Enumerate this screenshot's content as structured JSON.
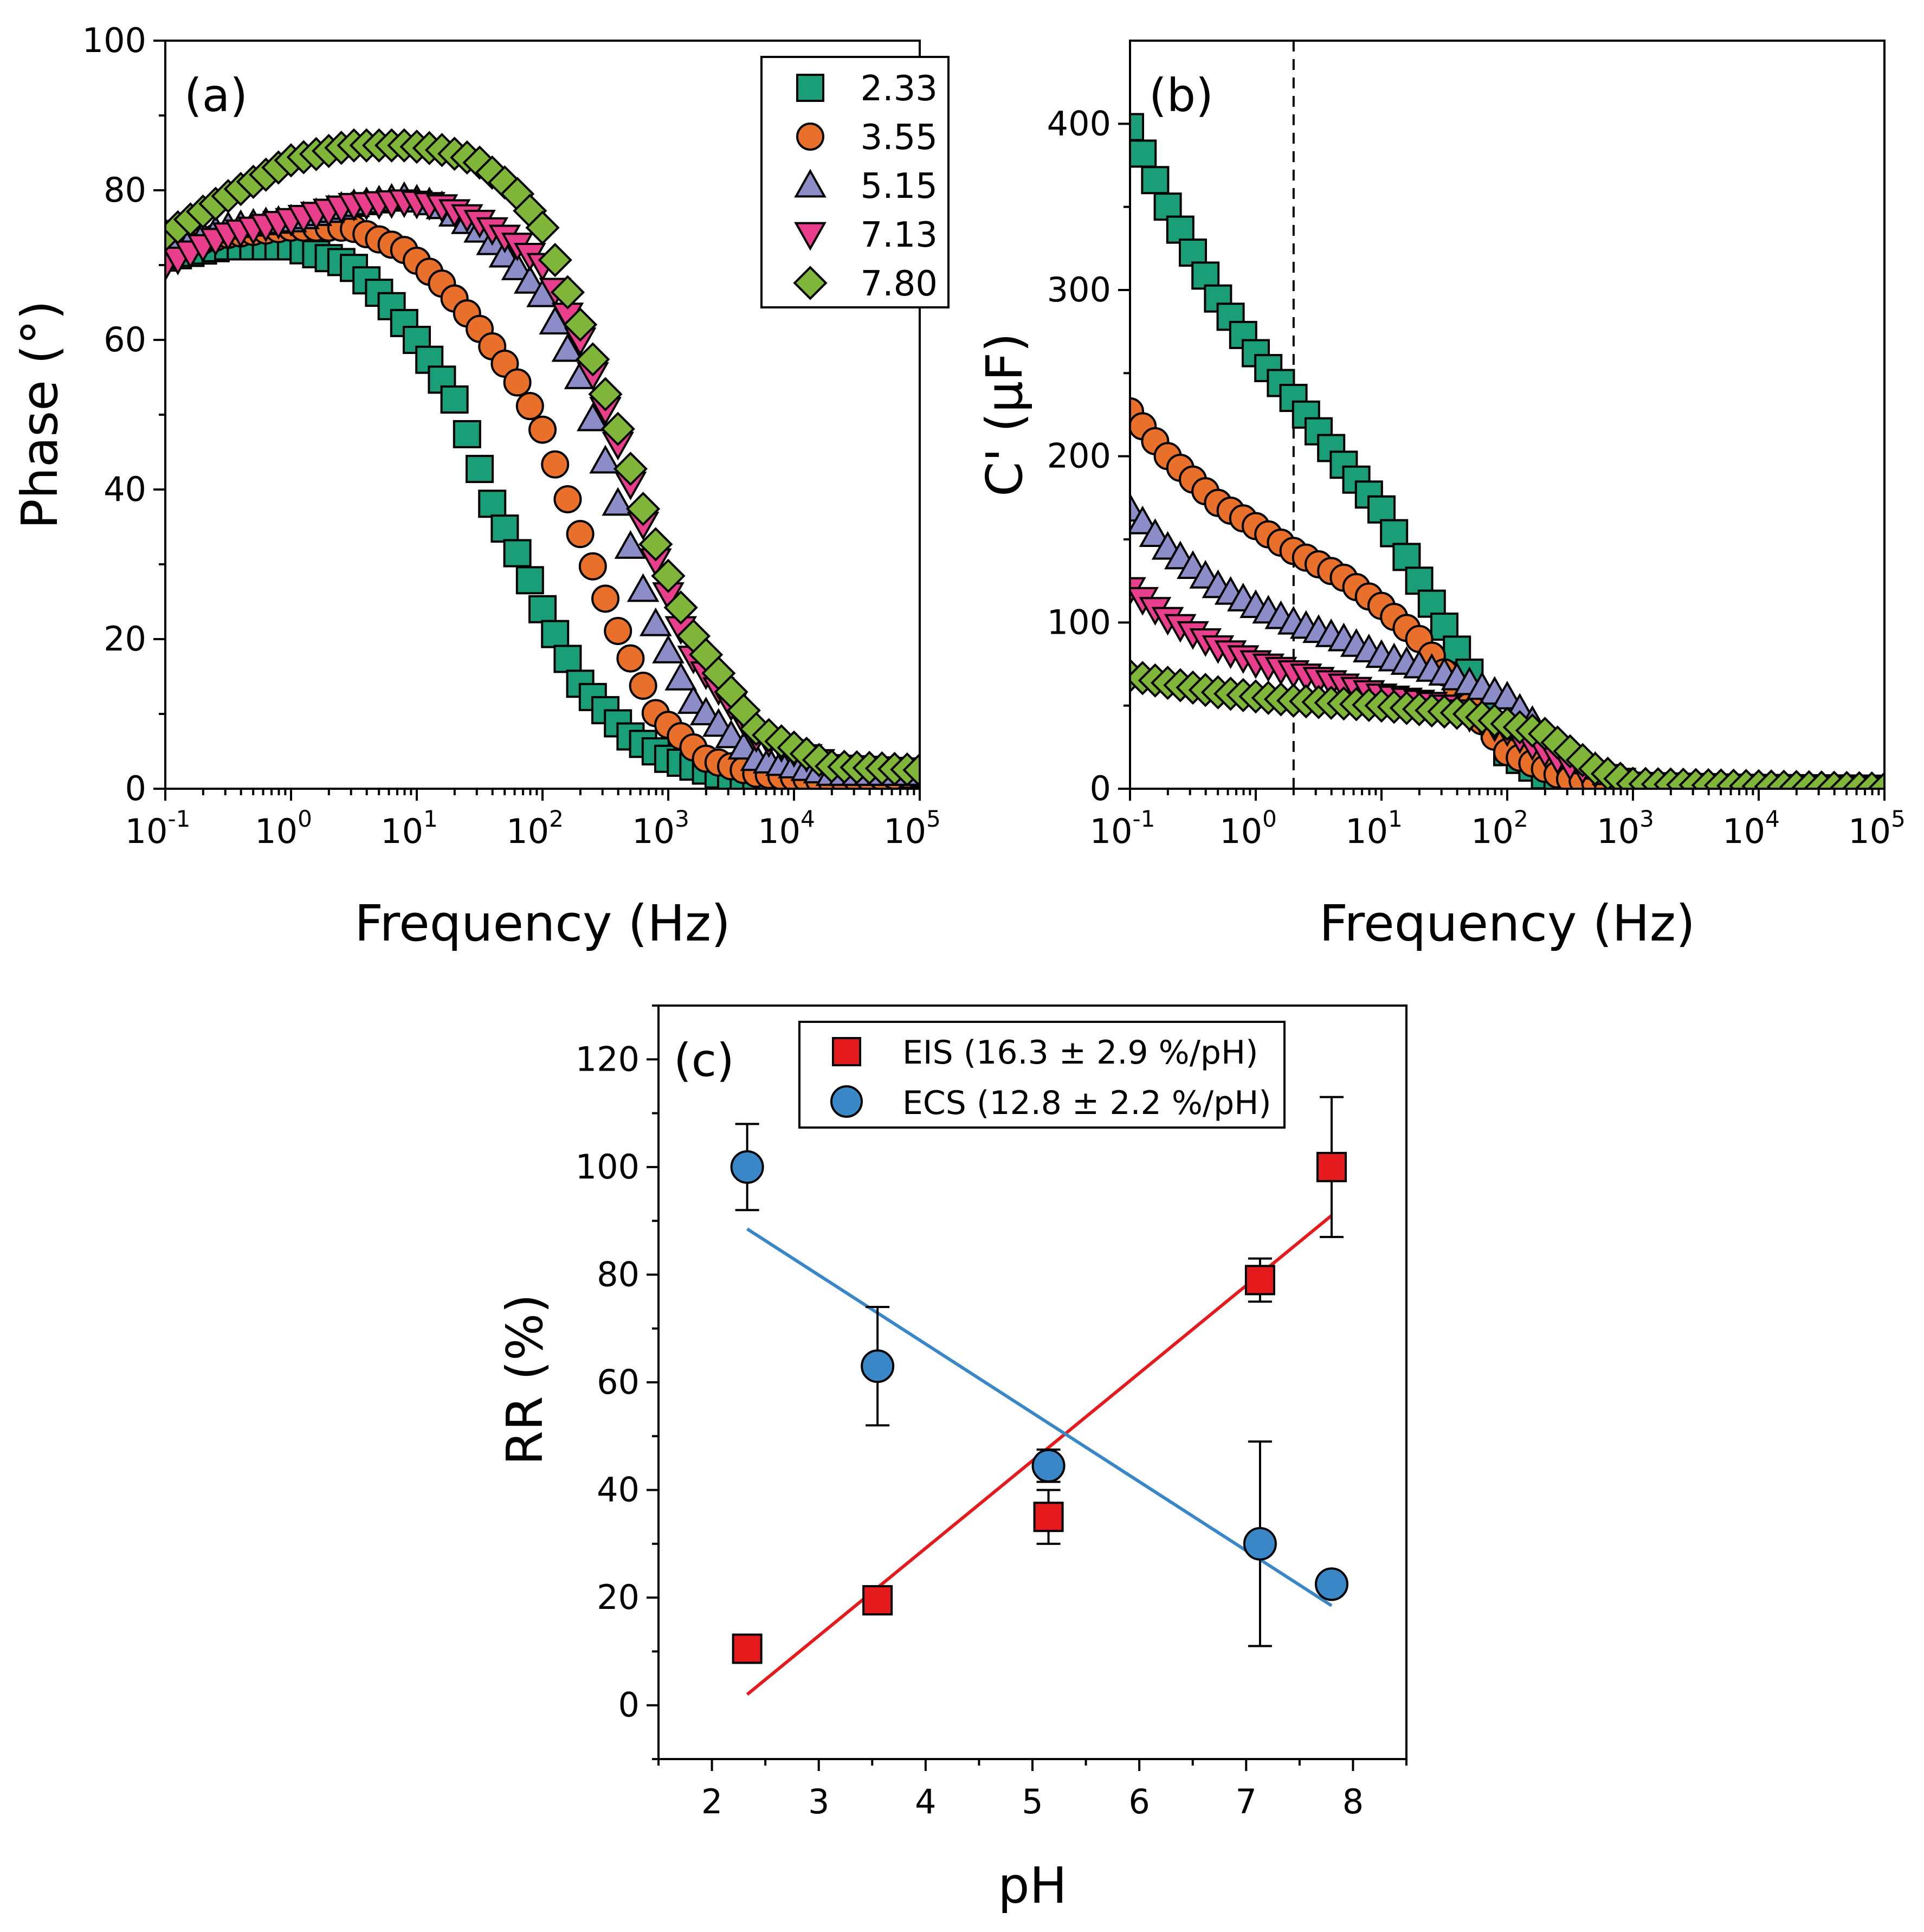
{
  "chart_data": [
    {
      "panel": "(a)",
      "type": "scatter",
      "xlabel": "Frequency (Hz)",
      "ylabel": "Phase (°)",
      "xscale": "log",
      "xlim": [
        0.1,
        100000
      ],
      "ylim": [
        0,
        100
      ],
      "x_ticks": [
        "10",
        "10",
        "10",
        "10",
        "10",
        "10",
        "10"
      ],
      "x_tick_exponents": [
        "-1",
        "0",
        "1",
        "2",
        "3",
        "4",
        "5"
      ],
      "y_ticks": [
        "0",
        "20",
        "40",
        "60",
        "80",
        "100"
      ],
      "legend_position": "top-right",
      "legend": [
        "2.33",
        "3.55",
        "5.15",
        "7.13",
        "7.80"
      ],
      "series": [
        {
          "name": "2.33",
          "marker": "square",
          "color": "#1a9e77",
          "anchors": [
            [
              0.1,
              71
            ],
            [
              0.3,
              72.5
            ],
            [
              1,
              72.5
            ],
            [
              3,
              70
            ],
            [
              6,
              65
            ],
            [
              10,
              60
            ],
            [
              20,
              52
            ],
            [
              40,
              38
            ],
            [
              70,
              30
            ],
            [
              100,
              24
            ],
            [
              200,
              14
            ],
            [
              500,
              7
            ],
            [
              1000,
              4
            ],
            [
              3000,
              1.5
            ],
            [
              10000,
              0.8
            ],
            [
              100000,
              2
            ]
          ]
        },
        {
          "name": "3.55",
          "marker": "circle",
          "color": "#e8702a",
          "anchors": [
            [
              0.1,
              72
            ],
            [
              0.3,
              74
            ],
            [
              1,
              75
            ],
            [
              3,
              75
            ],
            [
              8,
              72
            ],
            [
              15,
              68
            ],
            [
              30,
              62
            ],
            [
              60,
              55
            ],
            [
              100,
              48
            ],
            [
              200,
              34
            ],
            [
              400,
              21
            ],
            [
              800,
              10
            ],
            [
              2000,
              4
            ],
            [
              5000,
              2
            ],
            [
              20000,
              1
            ],
            [
              100000,
              2
            ]
          ]
        },
        {
          "name": "5.15",
          "marker": "triangle-up",
          "color": "#8c8cc8",
          "anchors": [
            [
              0.1,
              72
            ],
            [
              0.3,
              75
            ],
            [
              1,
              76
            ],
            [
              3,
              78
            ],
            [
              8,
              79
            ],
            [
              15,
              78
            ],
            [
              30,
              75
            ],
            [
              60,
              70
            ],
            [
              100,
              66
            ],
            [
              200,
              55
            ],
            [
              400,
              38
            ],
            [
              700,
              24
            ],
            [
              1500,
              12
            ],
            [
              5000,
              4
            ],
            [
              20000,
              2
            ],
            [
              100000,
              2
            ]
          ]
        },
        {
          "name": "7.13",
          "marker": "triangle-down",
          "color": "#e83e8c",
          "anchors": [
            [
              0.1,
              70
            ],
            [
              0.3,
              74
            ],
            [
              1,
              76
            ],
            [
              3,
              78
            ],
            [
              8,
              78.5
            ],
            [
              15,
              78
            ],
            [
              30,
              76
            ],
            [
              60,
              73
            ],
            [
              100,
              70
            ],
            [
              200,
              60
            ],
            [
              400,
              46
            ],
            [
              700,
              33
            ],
            [
              1500,
              18
            ],
            [
              5000,
              7
            ],
            [
              20000,
              3
            ],
            [
              100000,
              2.5
            ]
          ]
        },
        {
          "name": "7.80",
          "marker": "diamond",
          "color": "#7fb539",
          "anchors": [
            [
              0.1,
              74
            ],
            [
              0.3,
              79
            ],
            [
              1,
              84
            ],
            [
              3,
              86
            ],
            [
              8,
              86
            ],
            [
              15,
              85.5
            ],
            [
              30,
              84
            ],
            [
              60,
              80
            ],
            [
              100,
              75
            ],
            [
              200,
              62
            ],
            [
              400,
              48
            ],
            [
              700,
              35
            ],
            [
              1500,
              21
            ],
            [
              5000,
              8
            ],
            [
              20000,
              3
            ],
            [
              100000,
              2.5
            ]
          ]
        }
      ]
    },
    {
      "panel": "(b)",
      "type": "scatter",
      "xlabel": "Frequency (Hz)",
      "ylabel": "C' (μF)",
      "xscale": "log",
      "xlim": [
        0.1,
        100000
      ],
      "ylim": [
        0,
        450
      ],
      "x_ticks": [
        "10",
        "10",
        "10",
        "10",
        "10",
        "10",
        "10"
      ],
      "x_tick_exponents": [
        "-1",
        "0",
        "1",
        "2",
        "3",
        "4",
        "5"
      ],
      "y_ticks": [
        "0",
        "100",
        "200",
        "300",
        "400"
      ],
      "vertical_reference_line_at": 2,
      "series": [
        {
          "name": "2.33",
          "marker": "square",
          "color": "#1a9e77",
          "anchors": [
            [
              0.1,
              398
            ],
            [
              0.2,
              350
            ],
            [
              0.5,
              295
            ],
            [
              1,
              262
            ],
            [
              2,
              235
            ],
            [
              5,
              195
            ],
            [
              10,
              168
            ],
            [
              20,
              125
            ],
            [
              50,
              70
            ],
            [
              100,
              22
            ],
            [
              200,
              8
            ],
            [
              1000,
              1
            ],
            [
              100000,
              0
            ]
          ]
        },
        {
          "name": "3.55",
          "marker": "circle",
          "color": "#e8702a",
          "anchors": [
            [
              0.1,
              227
            ],
            [
              0.2,
              200
            ],
            [
              0.5,
              172
            ],
            [
              1,
              158
            ],
            [
              2,
              143
            ],
            [
              5,
              127
            ],
            [
              10,
              110
            ],
            [
              20,
              90
            ],
            [
              50,
              50
            ],
            [
              100,
              22
            ],
            [
              300,
              6
            ],
            [
              1000,
              1
            ],
            [
              100000,
              0
            ]
          ]
        },
        {
          "name": "5.15",
          "marker": "triangle-up",
          "color": "#8c8cc8",
          "anchors": [
            [
              0.1,
              168
            ],
            [
              0.2,
              145
            ],
            [
              0.5,
              122
            ],
            [
              1,
              110
            ],
            [
              2,
              100
            ],
            [
              5,
              90
            ],
            [
              10,
              80
            ],
            [
              30,
              70
            ],
            [
              100,
              55
            ],
            [
              300,
              20
            ],
            [
              1000,
              3
            ],
            [
              100000,
              0
            ]
          ]
        },
        {
          "name": "7.13",
          "marker": "triangle-down",
          "color": "#e83e8c",
          "anchors": [
            [
              0.1,
              120
            ],
            [
              0.2,
              102
            ],
            [
              0.5,
              85
            ],
            [
              1,
              76
            ],
            [
              2,
              70
            ],
            [
              5,
              62
            ],
            [
              10,
              56
            ],
            [
              30,
              50
            ],
            [
              100,
              35
            ],
            [
              300,
              15
            ],
            [
              1000,
              3
            ],
            [
              100000,
              0
            ]
          ]
        },
        {
          "name": "7.80",
          "marker": "diamond",
          "color": "#7fb539",
          "anchors": [
            [
              0.1,
              68
            ],
            [
              0.5,
              58
            ],
            [
              2,
              53
            ],
            [
              10,
              50
            ],
            [
              50,
              45
            ],
            [
              200,
              33
            ],
            [
              500,
              12
            ],
            [
              1000,
              3
            ],
            [
              100000,
              0
            ]
          ]
        }
      ]
    },
    {
      "panel": "(c)",
      "type": "scatter",
      "xlabel": "pH",
      "ylabel": "RR (%)",
      "xlim": [
        1.5,
        8.5
      ],
      "ylim": [
        -10,
        130
      ],
      "x_ticks": [
        "2",
        "3",
        "4",
        "5",
        "6",
        "7",
        "8"
      ],
      "y_ticks": [
        "0",
        "20",
        "40",
        "60",
        "80",
        "100",
        "120"
      ],
      "legend_position": "top-right",
      "legend": [
        "EIS (16.3 ± 2.9 %/pH)",
        "ECS (12.8 ± 2.2 %/pH)"
      ],
      "series": [
        {
          "name": "EIS (16.3 ± 2.9 %/pH)",
          "marker": "square",
          "color": "#e41a1c",
          "x": [
            2.33,
            3.55,
            5.15,
            7.13,
            7.8
          ],
          "y": [
            10.5,
            19.5,
            35,
            79,
            100
          ],
          "err": [
            2,
            2,
            5,
            4,
            13
          ],
          "fit": {
            "x": [
              2.33,
              7.8
            ],
            "y": [
              2,
              91
            ]
          }
        },
        {
          "name": "ECS (12.8 ± 2.2 %/pH)",
          "marker": "circle",
          "color": "#3a87c8",
          "x": [
            2.33,
            3.55,
            5.15,
            7.13,
            7.8
          ],
          "y": [
            100,
            63,
            44.5,
            30,
            22.5
          ],
          "err": [
            8,
            11,
            3,
            19,
            1.5
          ],
          "fit": {
            "x": [
              2.33,
              7.8
            ],
            "y": [
              88.5,
              18.5
            ]
          }
        }
      ]
    }
  ]
}
